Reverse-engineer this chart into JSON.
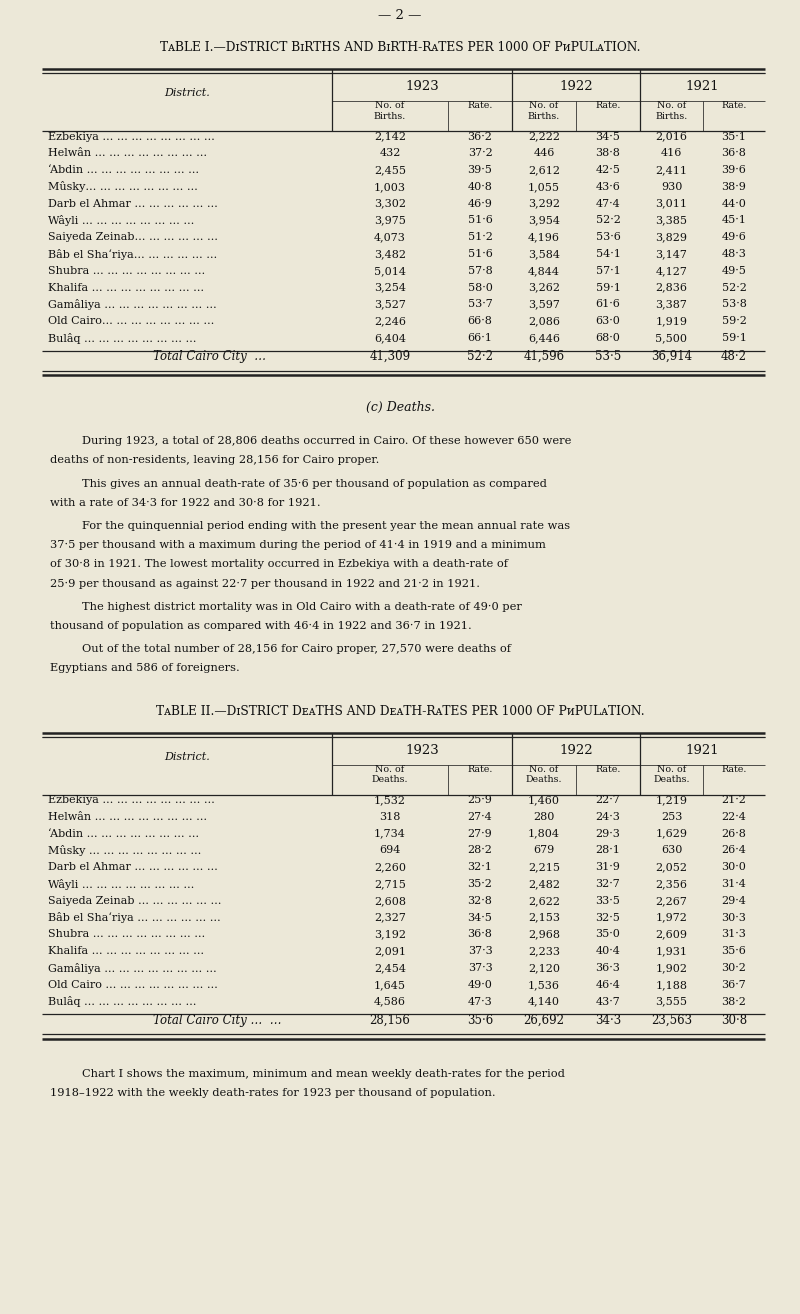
{
  "page_number": "— 2 —",
  "bg_color": "#ece8d8",
  "table1_title_parts": [
    {
      "text": "T",
      "small_caps": false
    },
    {
      "text": "ABLE",
      "small": true
    },
    {
      "text": " I.—",
      "small_caps": false
    },
    {
      "text": "D",
      "small_caps": false
    },
    {
      "text": "ISTRICT ",
      "small": true
    },
    {
      "text": "B",
      "small_caps": false
    },
    {
      "text": "IRTHS AND ",
      "small": true
    },
    {
      "text": "B",
      "small_caps": false
    },
    {
      "text": "IRTH-R",
      "small": true
    },
    {
      "text": "ATES PER 1000 OF ",
      "small": true
    },
    {
      "text": "P",
      "small_caps": false
    },
    {
      "text": "OPULATION.",
      "small": true
    }
  ],
  "table1_title": "Table I.—District Births and Birth-Rates per 1000 of Population.",
  "table1_col_label": "District.",
  "table1_rows": [
    [
      "Ezbekiya … … … … … … … …",
      "2,142",
      "36·2",
      "2,222",
      "34·5",
      "2,016",
      "35·1"
    ],
    [
      "Helwân … … … … … … … …",
      "432",
      "37·2",
      "446",
      "38·8",
      "416",
      "36·8"
    ],
    [
      "‘Abdin … … … … … … … …",
      "2,455",
      "39·5",
      "2,612",
      "42·5",
      "2,411",
      "39·6"
    ],
    [
      "Mûsky… … … … … … … …",
      "1,003",
      "40·8",
      "1,055",
      "43·6",
      "930",
      "38·9"
    ],
    [
      "Darb el Ahmar … … … … … …",
      "3,302",
      "46·9",
      "3,292",
      "47·4",
      "3,011",
      "44·0"
    ],
    [
      "Wâyli … … … … … … … …",
      "3,975",
      "51·6",
      "3,954",
      "52·2",
      "3,385",
      "45·1"
    ],
    [
      "Saiyeda Zeinab… … … … … …",
      "4,073",
      "51·2",
      "4,196",
      "53·6",
      "3,829",
      "49·6"
    ],
    [
      "Bâb el Sha‘riya… … … … … …",
      "3,482",
      "51·6",
      "3,584",
      "54·1",
      "3,147",
      "48·3"
    ],
    [
      "Shubra … … … … … … … …",
      "5,014",
      "57·8",
      "4,844",
      "57·1",
      "4,127",
      "49·5"
    ],
    [
      "Khalifa … … … … … … … …",
      "3,254",
      "58·0",
      "3,262",
      "59·1",
      "2,836",
      "52·2"
    ],
    [
      "Gamâliya … … … … … … … …",
      "3,527",
      "53·7",
      "3,597",
      "61·6",
      "3,387",
      "53·8"
    ],
    [
      "Old Cairo… … … … … … … …",
      "2,246",
      "66·8",
      "2,086",
      "63·0",
      "1,919",
      "59·2"
    ],
    [
      "Bulâq … … … … … … … …",
      "6,404",
      "66·1",
      "6,446",
      "68·0",
      "5,500",
      "59·1"
    ]
  ],
  "table1_total": [
    "Total Cairo City  …",
    "41,309",
    "52·2",
    "41,596",
    "53·5",
    "36,914",
    "48·2"
  ],
  "section_title": "(c) Deaths.",
  "paragraphs": [
    "During 1923, a total of 28,806 deaths occurred in Cairo.  Of these however 650 were deaths of non-residents, leaving 28,156 for Cairo proper.",
    "This gives an annual death-rate of 35·6 per thousand of population as compared with a rate of 34·3 for 1922 and 30·8 for 1921.",
    "For the quinquennial period ending with the present year the mean annual rate was 37·5 per thousand with a maximum during the period of 41·4 in 1919 and a minimum of 30·8 in 1921.  The lowest mortality occurred in Ezbekiya with a death-rate of 25·9 per thousand as against 22·7 per thousand in 1922 and 21·2 in 1921.",
    "The highest district mortality was in Old Cairo with a death-rate of 49·0 per thousand of population as compared with 46·4 in 1922 and 36·7 in 1921.",
    "Out of the total number of 28,156 for Cairo proper, 27,570 were deaths of Egyptians and 586 of foreigners."
  ],
  "table2_title": "Table II.—District Deaths and Death-Rates per 1000 of Population.",
  "table2_col_label": "District.",
  "table2_rows": [
    [
      "Ezbekiya … … … … … … … …",
      "1,532",
      "25·9",
      "1,460",
      "22·7",
      "1,219",
      "21·2"
    ],
    [
      "Helwân … … … … … … … …",
      "318",
      "27·4",
      "280",
      "24·3",
      "253",
      "22·4"
    ],
    [
      "‘Abdin … … … … … … … …",
      "1,734",
      "27·9",
      "1,804",
      "29·3",
      "1,629",
      "26·8"
    ],
    [
      "Mûsky … … … … … … … …",
      "694",
      "28·2",
      "679",
      "28·1",
      "630",
      "26·4"
    ],
    [
      "Darb el Ahmar … … … … … …",
      "2,260",
      "32·1",
      "2,215",
      "31·9",
      "2,052",
      "30·0"
    ],
    [
      "Wâyli … … … … … … … …",
      "2,715",
      "35·2",
      "2,482",
      "32·7",
      "2,356",
      "31·4"
    ],
    [
      "Saiyeda Zeinab … … … … … …",
      "2,608",
      "32·8",
      "2,622",
      "33·5",
      "2,267",
      "29·4"
    ],
    [
      "Bâb el Sha‘riya … … … … … …",
      "2,327",
      "34·5",
      "2,153",
      "32·5",
      "1,972",
      "30·3"
    ],
    [
      "Shubra … … … … … … … …",
      "3,192",
      "36·8",
      "2,968",
      "35·0",
      "2,609",
      "31·3"
    ],
    [
      "Khalifa … … … … … … … …",
      "2,091",
      "37·3",
      "2,233",
      "40·4",
      "1,931",
      "35·6"
    ],
    [
      "Gamâliya … … … … … … … …",
      "2,454",
      "37·3",
      "2,120",
      "36·3",
      "1,902",
      "30·2"
    ],
    [
      "Old Cairo … … … … … … … …",
      "1,645",
      "49·0",
      "1,536",
      "46·4",
      "1,188",
      "36·7"
    ],
    [
      "Bulâq … … … … … … … …",
      "4,586",
      "47·3",
      "4,140",
      "43·7",
      "3,555",
      "38·2"
    ]
  ],
  "table2_total": [
    "Total Cairo City …  …",
    "28,156",
    "35·6",
    "26,692",
    "34·3",
    "23,563",
    "30·8"
  ],
  "footer_text": "Chart I shows the maximum, minimum and mean weekly death-rates for the period 1918–1922 with the weekly death-rates for 1923 per thousand of population.",
  "text_color": "#111111",
  "line_color": "#222222"
}
